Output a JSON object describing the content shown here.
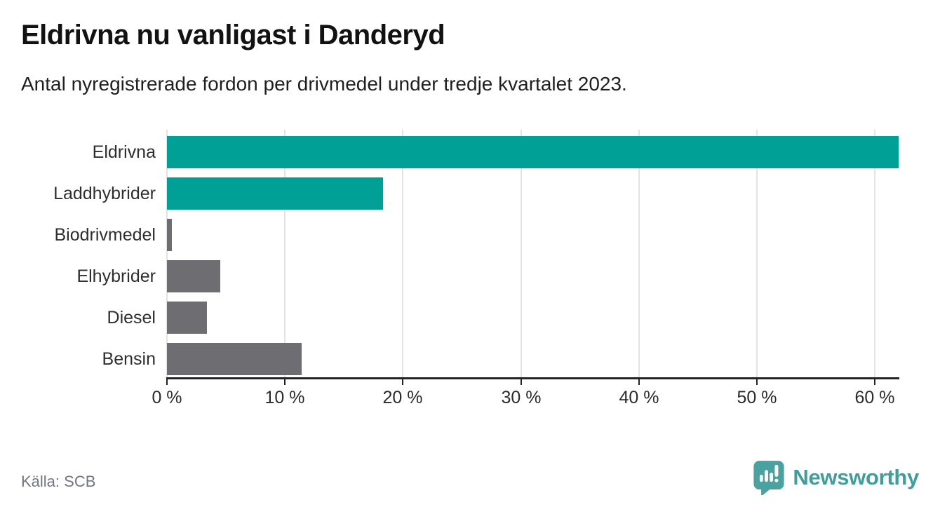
{
  "header": {
    "title": "Eldrivna nu vanligast i Danderyd",
    "subtitle": "Antal nyregistrerade fordon per drivmedel under tredje kvartalet 2023."
  },
  "chart_data": {
    "type": "bar",
    "orientation": "horizontal",
    "title": "Eldrivna nu vanligast i Danderyd",
    "subtitle": "Antal nyregistrerade fordon per drivmedel under tredje kvartalet 2023.",
    "categories": [
      "Eldrivna",
      "Laddhybrider",
      "Biodrivmedel",
      "Elhybrider",
      "Diesel",
      "Bensin"
    ],
    "values": [
      62.0,
      18.3,
      0.4,
      4.5,
      3.4,
      11.4
    ],
    "unit": "%",
    "xlabel": "",
    "ylabel": "",
    "xlim": [
      0,
      62
    ],
    "ticks": [
      0,
      10,
      20,
      30,
      40,
      50,
      60
    ],
    "tick_suffix": " %",
    "grid": true,
    "legend": false,
    "bar_colors": [
      "#00a096",
      "#00a096",
      "#6d6d72",
      "#6d6d72",
      "#6d6d72",
      "#6d6d72"
    ],
    "highlight_color": "#00a096",
    "default_color": "#6d6d72",
    "gridline_color": "#e3e3e3",
    "axis_color": "#242424"
  },
  "footer": {
    "source": "Källa: SCB",
    "brand": "Newsworthy",
    "brand_color": "#3f9e9b",
    "logo_color": "#4aa2a0"
  }
}
